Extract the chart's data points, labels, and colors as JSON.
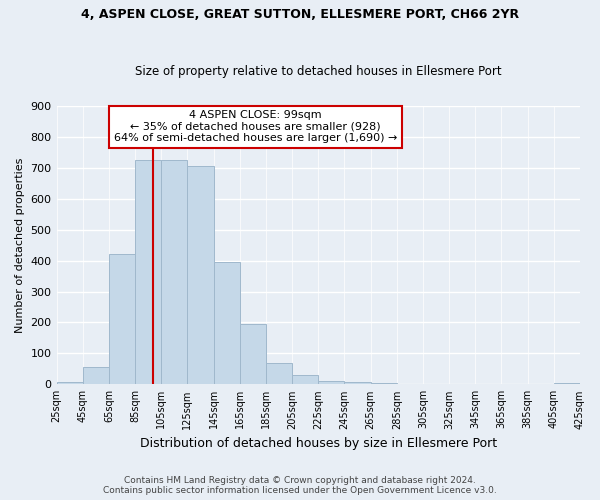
{
  "title": "4, ASPEN CLOSE, GREAT SUTTON, ELLESMERE PORT, CH66 2YR",
  "subtitle": "Size of property relative to detached houses in Ellesmere Port",
  "xlabel": "Distribution of detached houses by size in Ellesmere Port",
  "ylabel": "Number of detached properties",
  "footer_line1": "Contains HM Land Registry data © Crown copyright and database right 2024.",
  "footer_line2": "Contains public sector information licensed under the Open Government Licence v3.0.",
  "property_size": 99,
  "annotation_line1": "4 ASPEN CLOSE: 99sqm",
  "annotation_line2": "← 35% of detached houses are smaller (928)",
  "annotation_line3": "64% of semi-detached houses are larger (1,690) →",
  "bar_edges": [
    25,
    45,
    65,
    85,
    105,
    125,
    145,
    165,
    185,
    205,
    225,
    245,
    265,
    285,
    305,
    325,
    345,
    365,
    385,
    405,
    425
  ],
  "bar_values": [
    8,
    55,
    420,
    725,
    725,
    705,
    395,
    195,
    70,
    30,
    10,
    8,
    5,
    1,
    0,
    1,
    0,
    0,
    0,
    5
  ],
  "bar_color": "#c5d8e8",
  "bar_edge_color": "#a0b8cc",
  "vline_x": 99,
  "vline_color": "#cc0000",
  "annotation_box_color": "#cc0000",
  "background_color": "#e8eef5",
  "grid_color": "#ffffff",
  "ylim": [
    0,
    900
  ],
  "yticks": [
    0,
    100,
    200,
    300,
    400,
    500,
    600,
    700,
    800,
    900
  ]
}
